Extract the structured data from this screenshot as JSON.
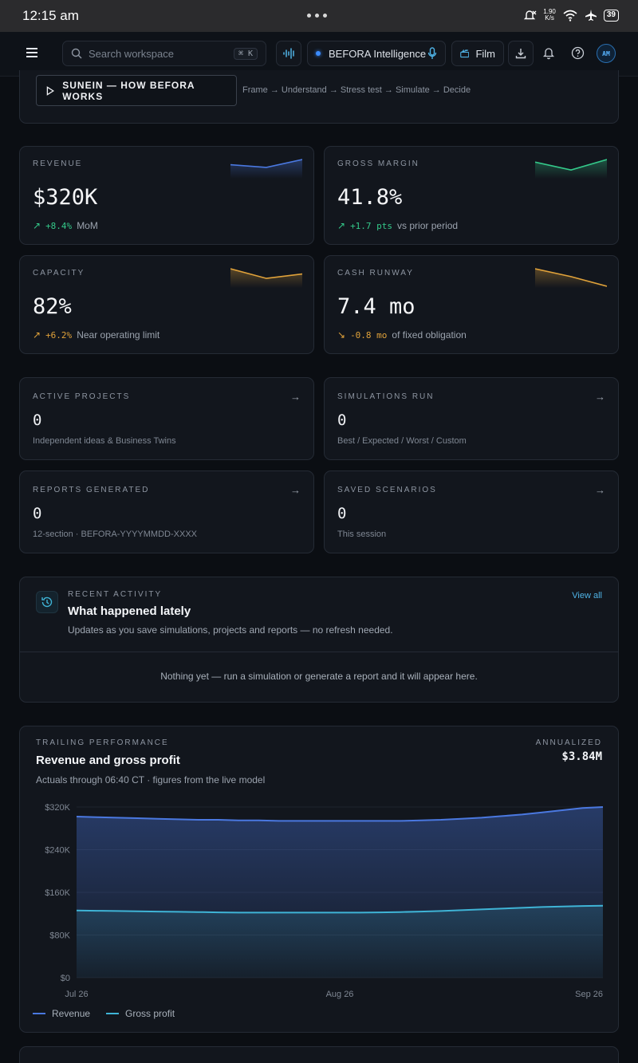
{
  "status_bar": {
    "time": "12:15 am",
    "net_speed_top": "1.90",
    "net_speed_bottom": "K/s",
    "battery": "39"
  },
  "nav": {
    "search_placeholder": "Search workspace",
    "search_shortcut": "⌘ K",
    "ai_label": "BEFORA Intelligence",
    "film_label": "Film",
    "avatar": "AM"
  },
  "hero": {
    "button_label": "SUNEIN — HOW BEFORA WORKS",
    "steps": "Frame → Understand → Stress test → Simulate → Decide"
  },
  "kpis": [
    {
      "label": "REVENUE",
      "value": "$320K",
      "delta": "+8.4%",
      "note": "MoM",
      "trend": "up",
      "color": "#4a78e0",
      "spark": [
        0.7,
        0.55,
        1.0
      ]
    },
    {
      "label": "GROSS MARGIN",
      "value": "41.8%",
      "delta": "+1.7 pts",
      "note": "vs prior period",
      "trend": "up",
      "color": "#34c98a",
      "spark": [
        0.85,
        0.4,
        1.0
      ]
    },
    {
      "label": "CAPACITY",
      "value": "82%",
      "delta": "+6.2%",
      "note": "Near operating limit",
      "trend": "up",
      "color": "#e0a23a",
      "spark": [
        1.0,
        0.45,
        0.7
      ]
    },
    {
      "label": "CASH RUNWAY",
      "value": "7.4 mo",
      "delta": "-0.8 mo",
      "note": "of fixed obligation",
      "trend": "down",
      "color": "#e0a23a",
      "spark": [
        1.0,
        0.55,
        0.0
      ]
    }
  ],
  "stats": [
    {
      "label": "ACTIVE PROJECTS",
      "value": "0",
      "sub": "Independent ideas & Business Twins"
    },
    {
      "label": "SIMULATIONS RUN",
      "value": "0",
      "sub": "Best / Expected / Worst / Custom"
    },
    {
      "label": "REPORTS GENERATED",
      "value": "0",
      "sub": "12-section · BEFORA-YYYYMMDD-XXXX"
    },
    {
      "label": "SAVED SCENARIOS",
      "value": "0",
      "sub": "This session"
    }
  ],
  "activity": {
    "label": "RECENT ACTIVITY",
    "title": "What happened lately",
    "description": "Updates as you save simulations, projects and reports — no refresh needed.",
    "view_all": "View all",
    "empty": "Nothing yet — run a simulation or generate a report and it will appear here."
  },
  "performance": {
    "label": "TRAILING PERFORMANCE",
    "title": "Revenue and gross profit",
    "subtitle": "Actuals through 06:40 CT · figures from the live model",
    "annualized_label": "ANNUALIZED",
    "annualized_value": "$3.84M"
  },
  "chart_data": {
    "type": "area",
    "x": [
      "Jul 26",
      "",
      "",
      "",
      "",
      "",
      "",
      "",
      "",
      "",
      "",
      "",
      "",
      "Aug 26",
      "",
      "",
      "",
      "",
      "",
      "",
      "",
      "",
      "",
      "",
      "",
      "",
      "Sep 26"
    ],
    "x_tick_labels": [
      "Jul 26",
      "Aug 26",
      "Sep 26"
    ],
    "y_tick_labels": [
      "$0",
      "$80K",
      "$160K",
      "$240K",
      "$320K"
    ],
    "ylim": [
      0,
      320
    ],
    "y_unit": "K",
    "series": [
      {
        "name": "Revenue",
        "color": "#4a78e0",
        "values": [
          302,
          301,
          300,
          299,
          298,
          297,
          296,
          296,
          295,
          295,
          294,
          294,
          294,
          294,
          294,
          294,
          294,
          295,
          296,
          298,
          300,
          303,
          306,
          310,
          314,
          318,
          320
        ]
      },
      {
        "name": "Gross profit",
        "color": "#3fb4d6",
        "values": [
          126,
          125.5,
          125,
          124.5,
          124,
          123.5,
          123,
          122.5,
          122,
          122,
          122,
          122,
          122,
          122,
          122,
          122.5,
          123,
          124,
          125,
          126.5,
          128,
          129.5,
          131,
          132.5,
          133.5,
          134.5,
          135
        ]
      }
    ],
    "grid": true,
    "legend": "bottom-left"
  }
}
